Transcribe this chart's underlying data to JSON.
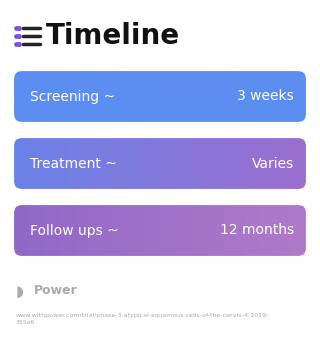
{
  "title": "Timeline",
  "title_fontsize": 20,
  "title_color": "#111111",
  "icon_color": "#7b52e8",
  "bg_color": "#ffffff",
  "rows": [
    {
      "label": "Screening ~",
      "value": "3 weeks",
      "color_left": "#5b8ef0",
      "color_right": "#5b8ef0"
    },
    {
      "label": "Treatment ~",
      "value": "Varies",
      "color_left": "#6b82e8",
      "color_right": "#9b6ecf"
    },
    {
      "label": "Follow ups ~",
      "value": "12 months",
      "color_left": "#9068c8",
      "color_right": "#b07ac8"
    }
  ],
  "footer_logo_text": "Power",
  "footer_url": "www.withpower.com/trial/phase-3-atypical-squamous-cells-of-the-cervix-4-2019-\n355e6",
  "footer_color": "#aaaaaa",
  "text_color": "#ffffff",
  "label_fontsize": 10,
  "value_fontsize": 10
}
